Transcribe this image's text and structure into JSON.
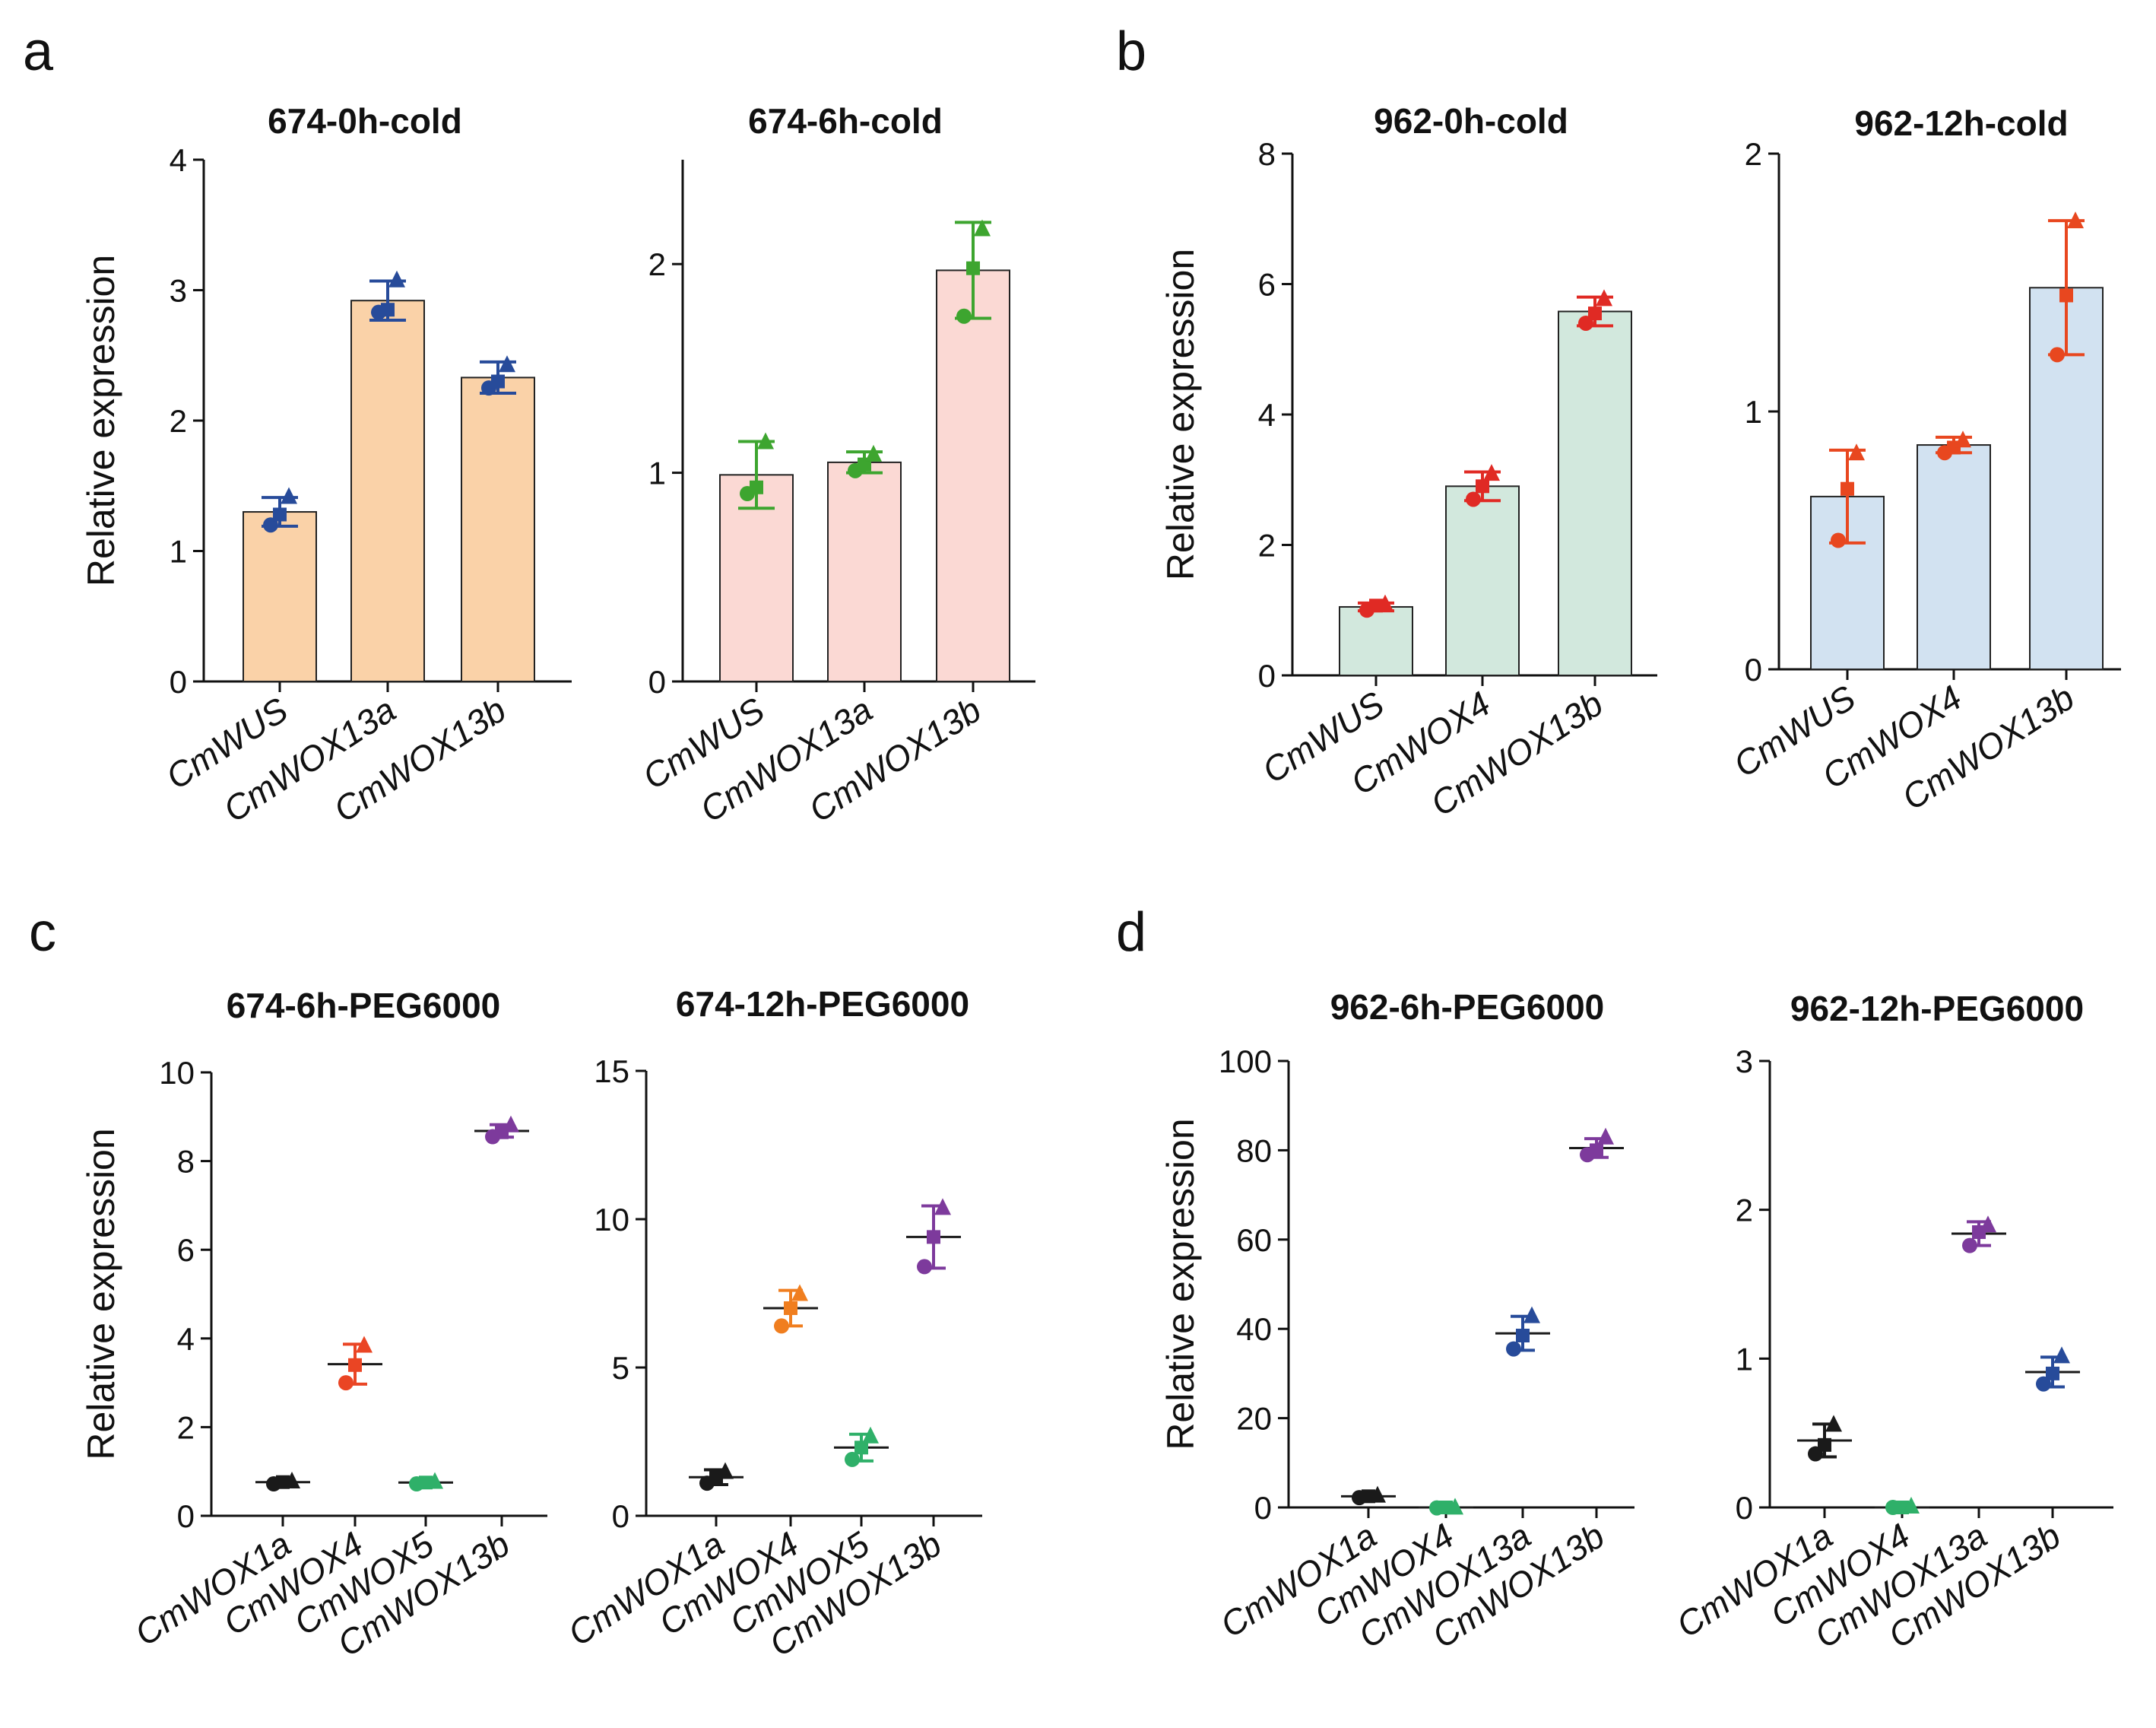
{
  "panels": [
    "a",
    "b",
    "c",
    "d"
  ],
  "chart_data": [
    {
      "type": "bar",
      "panel": "a",
      "title": "674-0h-cold",
      "ylabel": "Relative expression",
      "xlabel": "",
      "ylim": [
        0,
        4
      ],
      "yticks": [
        0,
        1,
        2,
        3,
        4
      ],
      "bar_color": "#fad2a8",
      "point_color": "#274b9a",
      "categories": [
        "CmWUS",
        "CmWOX13a",
        "CmWOX13b"
      ],
      "values": [
        1.3,
        2.92,
        2.33
      ],
      "errors": [
        0.11,
        0.15,
        0.12
      ],
      "points": [
        [
          1.2,
          1.28,
          1.42
        ],
        [
          2.83,
          2.85,
          3.08
        ],
        [
          2.25,
          2.3,
          2.43
        ]
      ]
    },
    {
      "type": "bar",
      "panel": "a",
      "title": "674-6h-cold",
      "ylabel": "",
      "xlabel": "",
      "ylim": [
        0,
        2.5
      ],
      "yticks": [
        0,
        1,
        2
      ],
      "bar_color": "#fbd9d4",
      "point_color": "#3da52f",
      "categories": [
        "CmWUS",
        "CmWOX13a",
        "CmWOX13b"
      ],
      "values": [
        0.99,
        1.05,
        1.97
      ],
      "errors": [
        0.16,
        0.05,
        0.23
      ],
      "points": [
        [
          0.9,
          0.93,
          1.15
        ],
        [
          1.01,
          1.04,
          1.09
        ],
        [
          1.75,
          1.98,
          2.17
        ]
      ]
    },
    {
      "type": "bar",
      "panel": "b",
      "title": "962-0h-cold",
      "ylabel": "Relative expression",
      "xlabel": "",
      "ylim": [
        0,
        8
      ],
      "yticks": [
        0,
        2,
        4,
        6,
        8
      ],
      "bar_color": "#d2e8dd",
      "point_color": "#e02a24",
      "categories": [
        "CmWUS",
        "CmWOX4",
        "CmWOX13b"
      ],
      "values": [
        1.05,
        2.9,
        5.58
      ],
      "errors": [
        0.06,
        0.22,
        0.22
      ],
      "points": [
        [
          1.0,
          1.07,
          1.1
        ],
        [
          2.7,
          2.9,
          3.1
        ],
        [
          5.4,
          5.55,
          5.78
        ]
      ]
    },
    {
      "type": "bar",
      "panel": "b",
      "title": "962-12h-cold",
      "ylabel": "",
      "xlabel": "",
      "ylim": [
        0,
        2
      ],
      "yticks": [
        0,
        1,
        2
      ],
      "bar_color": "#d2e2f1",
      "point_color": "#e8471f",
      "categories": [
        "CmWUS",
        "CmWOX4",
        "CmWOX13b"
      ],
      "values": [
        0.67,
        0.87,
        1.48
      ],
      "errors": [
        0.18,
        0.03,
        0.26
      ],
      "points": [
        [
          0.5,
          0.7,
          0.84
        ],
        [
          0.84,
          0.86,
          0.89
        ],
        [
          1.22,
          1.45,
          1.74
        ]
      ]
    },
    {
      "type": "scatter",
      "panel": "c",
      "title": "674-6h-PEG6000",
      "ylabel": "Relative expression",
      "xlabel": "",
      "ylim": [
        0,
        10
      ],
      "yticks": [
        0,
        2,
        4,
        6,
        8,
        10
      ],
      "categories": [
        "CmWOX1a",
        "CmWOX4",
        "CmWOX5",
        "CmWOX13b"
      ],
      "colors": [
        "#1a1a1a",
        "#ea4524",
        "#2fb069",
        "#7d3a9c"
      ],
      "values": [
        0.76,
        3.42,
        0.75,
        8.68
      ],
      "errors": [
        0.04,
        0.45,
        0.04,
        0.14
      ],
      "points": [
        [
          0.72,
          0.76,
          0.79
        ],
        [
          3.0,
          3.4,
          3.85
        ],
        [
          0.72,
          0.75,
          0.78
        ],
        [
          8.55,
          8.65,
          8.82
        ]
      ]
    },
    {
      "type": "scatter",
      "panel": "c",
      "title": "674-12h-PEG6000",
      "ylabel": "",
      "xlabel": "",
      "ylim": [
        0,
        15
      ],
      "yticks": [
        0,
        5,
        10,
        15
      ],
      "categories": [
        "CmWOX1a",
        "CmWOX4",
        "CmWOX5",
        "CmWOX13b"
      ],
      "colors": [
        "#1a1a1a",
        "#f07e1f",
        "#2fb069",
        "#7d3a9c"
      ],
      "values": [
        1.3,
        7.0,
        2.3,
        9.4
      ],
      "errors": [
        0.25,
        0.6,
        0.45,
        1.05
      ],
      "points": [
        [
          1.1,
          1.3,
          1.5
        ],
        [
          6.4,
          7.0,
          7.5
        ],
        [
          1.9,
          2.3,
          2.7
        ],
        [
          8.4,
          9.4,
          10.4
        ]
      ]
    },
    {
      "type": "scatter",
      "panel": "d",
      "title": "962-6h-PEG6000",
      "ylabel": "Relative expression",
      "xlabel": "",
      "ylim": [
        0,
        100
      ],
      "yticks": [
        0,
        20,
        40,
        60,
        80,
        100
      ],
      "categories": [
        "CmWOX1a",
        "CmWOX4",
        "CmWOX13a",
        "CmWOX13b"
      ],
      "colors": [
        "#1a1a1a",
        "#2fb069",
        "#274b9a",
        "#7d3a9c"
      ],
      "values": [
        2.5,
        0.0,
        39.0,
        80.5
      ],
      "errors": [
        0.4,
        0.1,
        3.8,
        2.1
      ],
      "points": [
        [
          2.2,
          2.5,
          2.8
        ],
        [
          -0.1,
          0.0,
          0.1
        ],
        [
          35.5,
          38.5,
          43.0
        ],
        [
          79.0,
          80.0,
          83.0
        ]
      ]
    },
    {
      "type": "scatter",
      "panel": "d",
      "title": "962-12h-PEG6000",
      "ylabel": "",
      "xlabel": "",
      "ylim": [
        0,
        3
      ],
      "yticks": [
        0,
        1,
        2,
        3
      ],
      "categories": [
        "CmWOX1a",
        "CmWOX4",
        "CmWOX13a",
        "CmWOX13b"
      ],
      "colors": [
        "#1a1a1a",
        "#2fb069",
        "#7d3a9c",
        "#274b9a"
      ],
      "values": [
        0.45,
        0.0,
        1.84,
        0.91
      ],
      "errors": [
        0.11,
        0.01,
        0.08,
        0.1
      ],
      "points": [
        [
          0.36,
          0.42,
          0.56
        ],
        [
          0.0,
          0.0,
          0.01
        ],
        [
          1.76,
          1.85,
          1.9
        ],
        [
          0.83,
          0.9,
          1.02
        ]
      ]
    }
  ]
}
